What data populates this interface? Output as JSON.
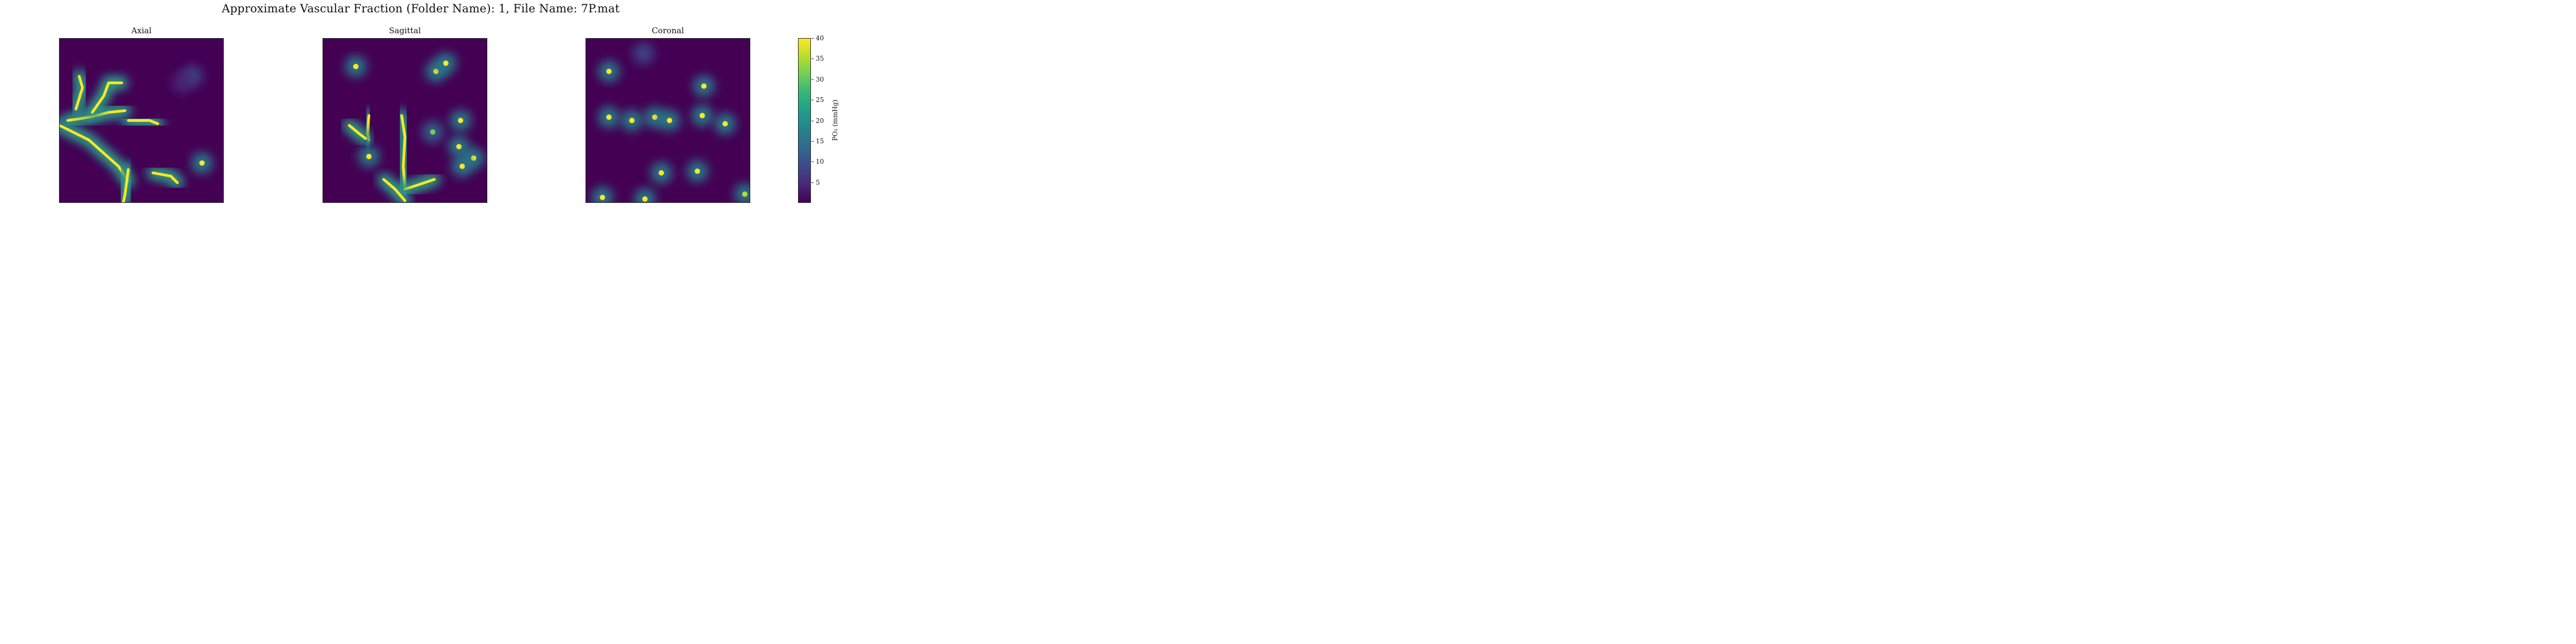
{
  "figure": {
    "suptitle": "Approximate Vascular Fraction (Folder Name): 1, File Name: 7P.mat"
  },
  "colorbar": {
    "label": "PO₂ (mmHg)",
    "range": [
      0,
      40
    ],
    "ticks": [
      "5",
      "10",
      "15",
      "20",
      "25",
      "30",
      "35",
      "40"
    ],
    "colormap": "viridis"
  },
  "chart_data": [
    {
      "type": "heatmap",
      "title": "Axial",
      "colormap": "viridis",
      "vmin": 0,
      "vmax": 40,
      "grid": false,
      "note_values": "PO2 field in mmHg, mostly ~0 with bright vessels up to 40",
      "features": [
        {
          "kind": "vessel",
          "points": [
            [
              0,
              0.53
            ],
            [
              0.18,
              0.62
            ],
            [
              0.36,
              0.78
            ],
            [
              0.42,
              0.87
            ]
          ],
          "po2": 40
        },
        {
          "kind": "vessel",
          "points": [
            [
              0.05,
              0.5
            ],
            [
              0.18,
              0.48
            ],
            [
              0.3,
              0.45
            ],
            [
              0.4,
              0.44
            ]
          ],
          "po2": 40
        },
        {
          "kind": "vessel",
          "points": [
            [
              0.1,
              0.43
            ],
            [
              0.14,
              0.3
            ],
            [
              0.12,
              0.23
            ]
          ],
          "po2": 40
        },
        {
          "kind": "vessel",
          "points": [
            [
              0.2,
              0.45
            ],
            [
              0.27,
              0.35
            ],
            [
              0.3,
              0.27
            ],
            [
              0.38,
              0.27
            ]
          ],
          "po2": 40
        },
        {
          "kind": "vessel",
          "points": [
            [
              0.42,
              0.5
            ],
            [
              0.55,
              0.5
            ],
            [
              0.6,
              0.52
            ]
          ],
          "po2": 38
        },
        {
          "kind": "vessel",
          "points": [
            [
              0.57,
              0.82
            ],
            [
              0.68,
              0.84
            ],
            [
              0.72,
              0.88
            ]
          ],
          "po2": 40
        },
        {
          "kind": "vessel",
          "points": [
            [
              0.42,
              0.8
            ],
            [
              0.4,
              0.95
            ],
            [
              0.39,
              1.0
            ]
          ],
          "po2": 40
        },
        {
          "kind": "blob",
          "xy": [
            0.87,
            0.76
          ],
          "po2": 40
        },
        {
          "kind": "blob",
          "xy": [
            0.81,
            0.23
          ],
          "po2": 15
        },
        {
          "kind": "blob",
          "xy": [
            0.75,
            0.27
          ],
          "po2": 8
        }
      ]
    },
    {
      "type": "heatmap",
      "title": "Sagittal",
      "colormap": "viridis",
      "vmin": 0,
      "vmax": 40,
      "grid": false,
      "features": [
        {
          "kind": "blob",
          "xy": [
            0.2,
            0.17
          ],
          "po2": 40
        },
        {
          "kind": "blob",
          "xy": [
            0.69,
            0.2
          ],
          "po2": 40
        },
        {
          "kind": "blob",
          "xy": [
            0.75,
            0.15
          ],
          "po2": 40
        },
        {
          "kind": "vessel",
          "points": [
            [
              0.28,
              0.47
            ],
            [
              0.27,
              0.58
            ],
            [
              0.28,
              0.62
            ]
          ],
          "po2": 40
        },
        {
          "kind": "vessel",
          "points": [
            [
              0.16,
              0.53
            ],
            [
              0.22,
              0.58
            ],
            [
              0.26,
              0.61
            ]
          ],
          "po2": 38
        },
        {
          "kind": "blob",
          "xy": [
            0.28,
            0.72
          ],
          "po2": 40
        },
        {
          "kind": "vessel",
          "points": [
            [
              0.48,
              0.47
            ],
            [
              0.5,
              0.6
            ],
            [
              0.49,
              0.78
            ],
            [
              0.5,
              0.92
            ]
          ],
          "po2": 40
        },
        {
          "kind": "vessel",
          "points": [
            [
              0.5,
              0.92
            ],
            [
              0.62,
              0.88
            ],
            [
              0.68,
              0.86
            ]
          ],
          "po2": 40
        },
        {
          "kind": "vessel",
          "points": [
            [
              0.37,
              0.86
            ],
            [
              0.44,
              0.92
            ],
            [
              0.5,
              0.99
            ]
          ],
          "po2": 38
        },
        {
          "kind": "blob",
          "xy": [
            0.67,
            0.57
          ],
          "po2": 30
        },
        {
          "kind": "blob",
          "xy": [
            0.84,
            0.5
          ],
          "po2": 40
        },
        {
          "kind": "blob",
          "xy": [
            0.83,
            0.66
          ],
          "po2": 38
        },
        {
          "kind": "blob",
          "xy": [
            0.92,
            0.73
          ],
          "po2": 38
        },
        {
          "kind": "blob",
          "xy": [
            0.85,
            0.78
          ],
          "po2": 40
        }
      ]
    },
    {
      "type": "heatmap",
      "title": "Coronal",
      "colormap": "viridis",
      "vmin": 0,
      "vmax": 40,
      "grid": false,
      "features": [
        {
          "kind": "blob",
          "xy": [
            0.14,
            0.2
          ],
          "po2": 40
        },
        {
          "kind": "blob",
          "xy": [
            0.72,
            0.29
          ],
          "po2": 40
        },
        {
          "kind": "blob",
          "xy": [
            0.35,
            0.09
          ],
          "po2": 15
        },
        {
          "kind": "blob",
          "xy": [
            0.14,
            0.48
          ],
          "po2": 40
        },
        {
          "kind": "blob",
          "xy": [
            0.28,
            0.5
          ],
          "po2": 40
        },
        {
          "kind": "blob",
          "xy": [
            0.42,
            0.48
          ],
          "po2": 40
        },
        {
          "kind": "blob",
          "xy": [
            0.51,
            0.5
          ],
          "po2": 40
        },
        {
          "kind": "blob",
          "xy": [
            0.71,
            0.47
          ],
          "po2": 40
        },
        {
          "kind": "blob",
          "xy": [
            0.85,
            0.52
          ],
          "po2": 38
        },
        {
          "kind": "blob",
          "xy": [
            0.46,
            0.82
          ],
          "po2": 40
        },
        {
          "kind": "blob",
          "xy": [
            0.68,
            0.81
          ],
          "po2": 40
        },
        {
          "kind": "blob",
          "xy": [
            0.1,
            0.97
          ],
          "po2": 40
        },
        {
          "kind": "blob",
          "xy": [
            0.36,
            0.98
          ],
          "po2": 40
        },
        {
          "kind": "blob",
          "xy": [
            0.97,
            0.95
          ],
          "po2": 35
        }
      ]
    }
  ]
}
